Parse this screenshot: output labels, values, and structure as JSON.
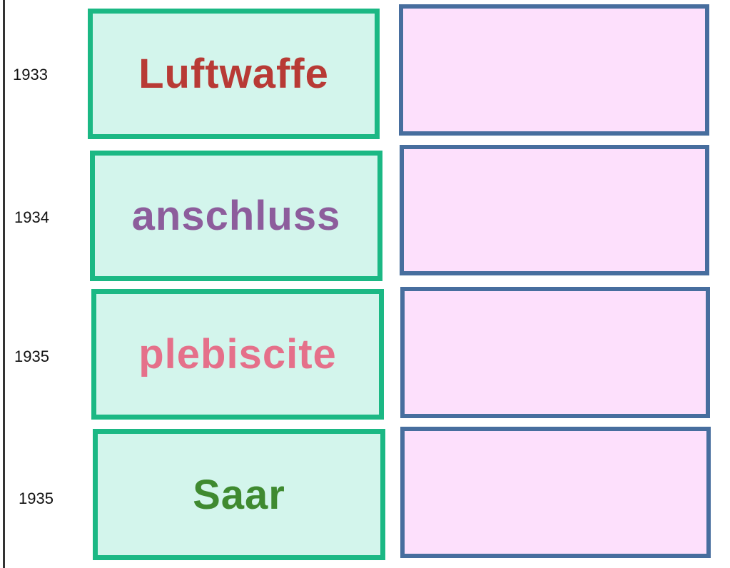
{
  "rows": [
    {
      "year": "1933",
      "term": "Luftwaffe",
      "term_color": "#b83a35",
      "answer": ""
    },
    {
      "year": "1934",
      "term": "anschluss",
      "term_color": "#8d5d9c",
      "answer": ""
    },
    {
      "year": "1935",
      "term": "plebiscite",
      "term_color": "#e5708a",
      "answer": ""
    },
    {
      "year": "1935",
      "term": "Saar",
      "term_color": "#3f8a30",
      "answer": ""
    }
  ],
  "colors": {
    "term_border": "#1bb884",
    "term_fill": "#d3f5ec",
    "answer_border": "#476e9e",
    "answer_fill": "#fde0fc"
  }
}
